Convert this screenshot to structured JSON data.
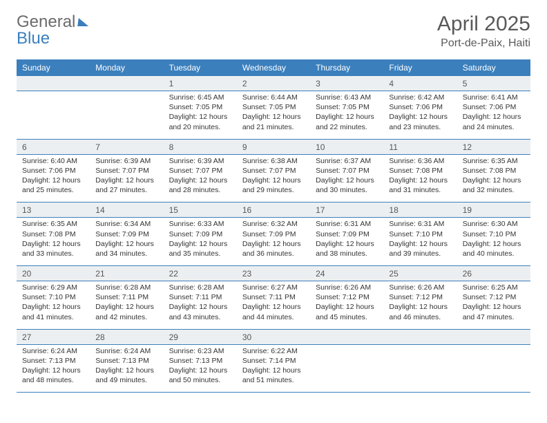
{
  "brand": {
    "part1": "General",
    "part2": "Blue"
  },
  "title": {
    "month": "April 2025",
    "location": "Port-de-Paix, Haiti"
  },
  "colors": {
    "header_bg": "#3b7fbd",
    "header_text": "#ffffff",
    "daynum_bg": "#eceff1",
    "title_color": "#595959",
    "brand_gray": "#6b6b6b",
    "brand_blue": "#3b7fbd",
    "row_border": "#3b7fbd"
  },
  "weekdays": [
    "Sunday",
    "Monday",
    "Tuesday",
    "Wednesday",
    "Thursday",
    "Friday",
    "Saturday"
  ],
  "weeks": [
    [
      null,
      null,
      {
        "n": "1",
        "sunrise": "Sunrise: 6:45 AM",
        "sunset": "Sunset: 7:05 PM",
        "d1": "Daylight: 12 hours",
        "d2": "and 20 minutes."
      },
      {
        "n": "2",
        "sunrise": "Sunrise: 6:44 AM",
        "sunset": "Sunset: 7:05 PM",
        "d1": "Daylight: 12 hours",
        "d2": "and 21 minutes."
      },
      {
        "n": "3",
        "sunrise": "Sunrise: 6:43 AM",
        "sunset": "Sunset: 7:05 PM",
        "d1": "Daylight: 12 hours",
        "d2": "and 22 minutes."
      },
      {
        "n": "4",
        "sunrise": "Sunrise: 6:42 AM",
        "sunset": "Sunset: 7:06 PM",
        "d1": "Daylight: 12 hours",
        "d2": "and 23 minutes."
      },
      {
        "n": "5",
        "sunrise": "Sunrise: 6:41 AM",
        "sunset": "Sunset: 7:06 PM",
        "d1": "Daylight: 12 hours",
        "d2": "and 24 minutes."
      }
    ],
    [
      {
        "n": "6",
        "sunrise": "Sunrise: 6:40 AM",
        "sunset": "Sunset: 7:06 PM",
        "d1": "Daylight: 12 hours",
        "d2": "and 25 minutes."
      },
      {
        "n": "7",
        "sunrise": "Sunrise: 6:39 AM",
        "sunset": "Sunset: 7:07 PM",
        "d1": "Daylight: 12 hours",
        "d2": "and 27 minutes."
      },
      {
        "n": "8",
        "sunrise": "Sunrise: 6:39 AM",
        "sunset": "Sunset: 7:07 PM",
        "d1": "Daylight: 12 hours",
        "d2": "and 28 minutes."
      },
      {
        "n": "9",
        "sunrise": "Sunrise: 6:38 AM",
        "sunset": "Sunset: 7:07 PM",
        "d1": "Daylight: 12 hours",
        "d2": "and 29 minutes."
      },
      {
        "n": "10",
        "sunrise": "Sunrise: 6:37 AM",
        "sunset": "Sunset: 7:07 PM",
        "d1": "Daylight: 12 hours",
        "d2": "and 30 minutes."
      },
      {
        "n": "11",
        "sunrise": "Sunrise: 6:36 AM",
        "sunset": "Sunset: 7:08 PM",
        "d1": "Daylight: 12 hours",
        "d2": "and 31 minutes."
      },
      {
        "n": "12",
        "sunrise": "Sunrise: 6:35 AM",
        "sunset": "Sunset: 7:08 PM",
        "d1": "Daylight: 12 hours",
        "d2": "and 32 minutes."
      }
    ],
    [
      {
        "n": "13",
        "sunrise": "Sunrise: 6:35 AM",
        "sunset": "Sunset: 7:08 PM",
        "d1": "Daylight: 12 hours",
        "d2": "and 33 minutes."
      },
      {
        "n": "14",
        "sunrise": "Sunrise: 6:34 AM",
        "sunset": "Sunset: 7:09 PM",
        "d1": "Daylight: 12 hours",
        "d2": "and 34 minutes."
      },
      {
        "n": "15",
        "sunrise": "Sunrise: 6:33 AM",
        "sunset": "Sunset: 7:09 PM",
        "d1": "Daylight: 12 hours",
        "d2": "and 35 minutes."
      },
      {
        "n": "16",
        "sunrise": "Sunrise: 6:32 AM",
        "sunset": "Sunset: 7:09 PM",
        "d1": "Daylight: 12 hours",
        "d2": "and 36 minutes."
      },
      {
        "n": "17",
        "sunrise": "Sunrise: 6:31 AM",
        "sunset": "Sunset: 7:09 PM",
        "d1": "Daylight: 12 hours",
        "d2": "and 38 minutes."
      },
      {
        "n": "18",
        "sunrise": "Sunrise: 6:31 AM",
        "sunset": "Sunset: 7:10 PM",
        "d1": "Daylight: 12 hours",
        "d2": "and 39 minutes."
      },
      {
        "n": "19",
        "sunrise": "Sunrise: 6:30 AM",
        "sunset": "Sunset: 7:10 PM",
        "d1": "Daylight: 12 hours",
        "d2": "and 40 minutes."
      }
    ],
    [
      {
        "n": "20",
        "sunrise": "Sunrise: 6:29 AM",
        "sunset": "Sunset: 7:10 PM",
        "d1": "Daylight: 12 hours",
        "d2": "and 41 minutes."
      },
      {
        "n": "21",
        "sunrise": "Sunrise: 6:28 AM",
        "sunset": "Sunset: 7:11 PM",
        "d1": "Daylight: 12 hours",
        "d2": "and 42 minutes."
      },
      {
        "n": "22",
        "sunrise": "Sunrise: 6:28 AM",
        "sunset": "Sunset: 7:11 PM",
        "d1": "Daylight: 12 hours",
        "d2": "and 43 minutes."
      },
      {
        "n": "23",
        "sunrise": "Sunrise: 6:27 AM",
        "sunset": "Sunset: 7:11 PM",
        "d1": "Daylight: 12 hours",
        "d2": "and 44 minutes."
      },
      {
        "n": "24",
        "sunrise": "Sunrise: 6:26 AM",
        "sunset": "Sunset: 7:12 PM",
        "d1": "Daylight: 12 hours",
        "d2": "and 45 minutes."
      },
      {
        "n": "25",
        "sunrise": "Sunrise: 6:26 AM",
        "sunset": "Sunset: 7:12 PM",
        "d1": "Daylight: 12 hours",
        "d2": "and 46 minutes."
      },
      {
        "n": "26",
        "sunrise": "Sunrise: 6:25 AM",
        "sunset": "Sunset: 7:12 PM",
        "d1": "Daylight: 12 hours",
        "d2": "and 47 minutes."
      }
    ],
    [
      {
        "n": "27",
        "sunrise": "Sunrise: 6:24 AM",
        "sunset": "Sunset: 7:13 PM",
        "d1": "Daylight: 12 hours",
        "d2": "and 48 minutes."
      },
      {
        "n": "28",
        "sunrise": "Sunrise: 6:24 AM",
        "sunset": "Sunset: 7:13 PM",
        "d1": "Daylight: 12 hours",
        "d2": "and 49 minutes."
      },
      {
        "n": "29",
        "sunrise": "Sunrise: 6:23 AM",
        "sunset": "Sunset: 7:13 PM",
        "d1": "Daylight: 12 hours",
        "d2": "and 50 minutes."
      },
      {
        "n": "30",
        "sunrise": "Sunrise: 6:22 AM",
        "sunset": "Sunset: 7:14 PM",
        "d1": "Daylight: 12 hours",
        "d2": "and 51 minutes."
      },
      null,
      null,
      null
    ]
  ]
}
